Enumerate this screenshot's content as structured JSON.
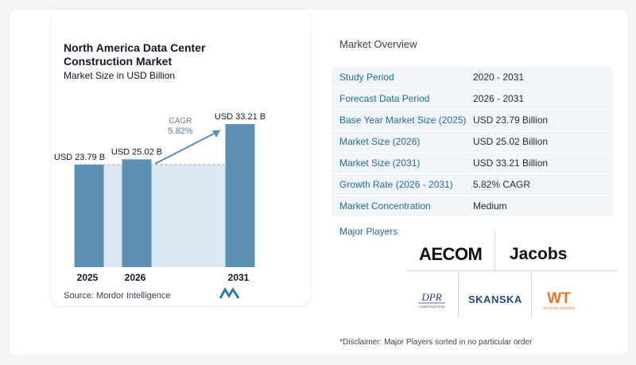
{
  "chart_panel": {
    "title": "North America Data Center Construction Market",
    "subtitle": "Market Size in USD Billion",
    "source": "Source:  Mordor Intelligence"
  },
  "chart_data": {
    "type": "bar",
    "title": "North America Data Center Construction Market",
    "subtitle": "Market Size in USD Billion",
    "categories": [
      "2025",
      "2026",
      "2031"
    ],
    "values": [
      23.79,
      25.02,
      33.21
    ],
    "data_labels": [
      "USD 23.79 B",
      "USD 25.02 B",
      "USD 33.21 B"
    ],
    "annotation": {
      "label": "CAGR",
      "value": "5.82%"
    },
    "bar_color": "#5b8fb6",
    "band_color": "#dce8f1"
  },
  "overview": {
    "title": "Market Overview",
    "rows": [
      {
        "key": "Study Period",
        "value": "2020 - 2031"
      },
      {
        "key": "Forecast Data Period",
        "value": "2026 - 2031"
      },
      {
        "key": "Base Year Market Size (2025)",
        "value": "USD 23.79 Billion"
      },
      {
        "key": "Market Size (2026)",
        "value": "USD 25.02 Billion"
      },
      {
        "key": "Market Size (2031)",
        "value": "USD 33.21 Billion"
      },
      {
        "key": "Growth Rate (2026 - 2031)",
        "value": "5.82% CAGR"
      },
      {
        "key": "Market Concentration",
        "value": "Medium"
      }
    ]
  },
  "players": {
    "label": "Major Players",
    "logos": [
      {
        "name": "AECOM",
        "icon": "aecom-logo"
      },
      {
        "name": "Jacobs",
        "icon": "jacobs-logo"
      },
      {
        "name": "DPR",
        "icon": "dpr-logo",
        "tagline": "CONSTRUCTION"
      },
      {
        "name": "SKANSKA",
        "icon": "skanska-logo"
      },
      {
        "name": "WT",
        "icon": "whiting-turner-logo",
        "tagline": "WHITING-TURNER"
      }
    ]
  },
  "disclaimer": "*Disclaimer: Major Players sorted in no particular order",
  "colors": {
    "accent": "#1f6d93",
    "row_shade": "#f1f5f9",
    "wt_orange": "#e8742a"
  }
}
